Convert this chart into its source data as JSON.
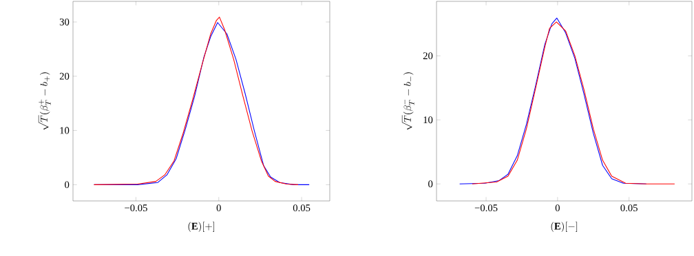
{
  "chart_data": [
    {
      "type": "line",
      "xlabel": "(\\mathbf{E})[+]",
      "ylabel": "\\sqrt{T}(\\beta_T^+ - b_+)",
      "xlim": [
        -0.088,
        0.067
      ],
      "ylim": [
        -3,
        33.8
      ],
      "xticks": [
        {
          "value": -0.05,
          "label": "−0.05"
        },
        0,
        0.05
      ],
      "yticks": [
        0,
        10,
        20,
        30
      ],
      "grid": false,
      "marker": "none",
      "line_style": "solid",
      "series": [
        {
          "color": "#0000ff",
          "x": [
            -0.0753,
            -0.049,
            -0.0368,
            -0.0313,
            -0.0257,
            -0.0201,
            -0.0146,
            -0.009,
            -0.0049,
            -0.0007,
            0.0049,
            0.0104,
            0.016,
            0.0215,
            0.0271,
            0.0313,
            0.0368,
            0.0451,
            0.0546
          ],
          "values": [
            0,
            0,
            0.4,
            1.8,
            4.8,
            10.3,
            16.3,
            23.5,
            27.3,
            29.9,
            27.8,
            23.1,
            16.7,
            9.9,
            3.5,
            1.4,
            0.4,
            0,
            0
          ]
        },
        {
          "color": "#ff0000",
          "x": [
            -0.0753,
            -0.049,
            -0.038,
            -0.0326,
            -0.027,
            -0.0215,
            -0.016,
            -0.0104,
            -0.0049,
            -0.0014,
            0.0004,
            0.0035,
            0.009,
            0.0146,
            0.0201,
            0.0257,
            0.0299,
            0.034,
            0.041,
            0.0479
          ],
          "values": [
            0,
            0.1,
            0.6,
            1.8,
            4.4,
            9.5,
            15.4,
            21.8,
            27.8,
            30.3,
            30.9,
            28.6,
            23.1,
            16.3,
            9.9,
            4.4,
            1.6,
            0.6,
            0.1,
            0
          ]
        }
      ]
    },
    {
      "type": "line",
      "xlabel": "(\\mathbf{E})[-]",
      "ylabel": "\\sqrt{T}(\\beta_T^- - b_-)",
      "xlim": [
        -0.0847,
        0.094
      ],
      "ylim": [
        -2.66,
        28.5
      ],
      "xticks": [
        {
          "value": -0.05,
          "label": "−0.05"
        },
        0,
        0.05
      ],
      "yticks": [
        0,
        10,
        20
      ],
      "grid": false,
      "marker": "none",
      "line_style": "solid",
      "series": [
        {
          "color": "#0000ff",
          "x": [
            -0.0685,
            -0.0508,
            -0.0411,
            -0.0347,
            -0.0282,
            -0.0218,
            -0.0153,
            -0.0089,
            -0.004,
            -0.0005,
            0.0056,
            0.0121,
            0.0185,
            0.025,
            0.0315,
            0.0379,
            0.046,
            0.0621
          ],
          "values": [
            0,
            0.1,
            0.5,
            1.5,
            4.4,
            9.3,
            15.4,
            21.8,
            25,
            25.9,
            23.6,
            19.6,
            14,
            7.9,
            2.9,
            0.8,
            0.1,
            0
          ]
        },
        {
          "color": "#ff0000",
          "x": [
            -0.0597,
            -0.0427,
            -0.0347,
            -0.0282,
            -0.0218,
            -0.0153,
            -0.0089,
            -0.0056,
            -0.0008,
            0.0056,
            0.0121,
            0.0185,
            0.025,
            0.0315,
            0.0379,
            0.0476,
            0.0621,
            0.0819
          ],
          "values": [
            0,
            0.3,
            1.2,
            3.7,
            8.6,
            15,
            21.4,
            24.3,
            25.3,
            23.9,
            20,
            14.7,
            8.6,
            3.7,
            1.2,
            0.1,
            0,
            0
          ]
        }
      ]
    }
  ]
}
